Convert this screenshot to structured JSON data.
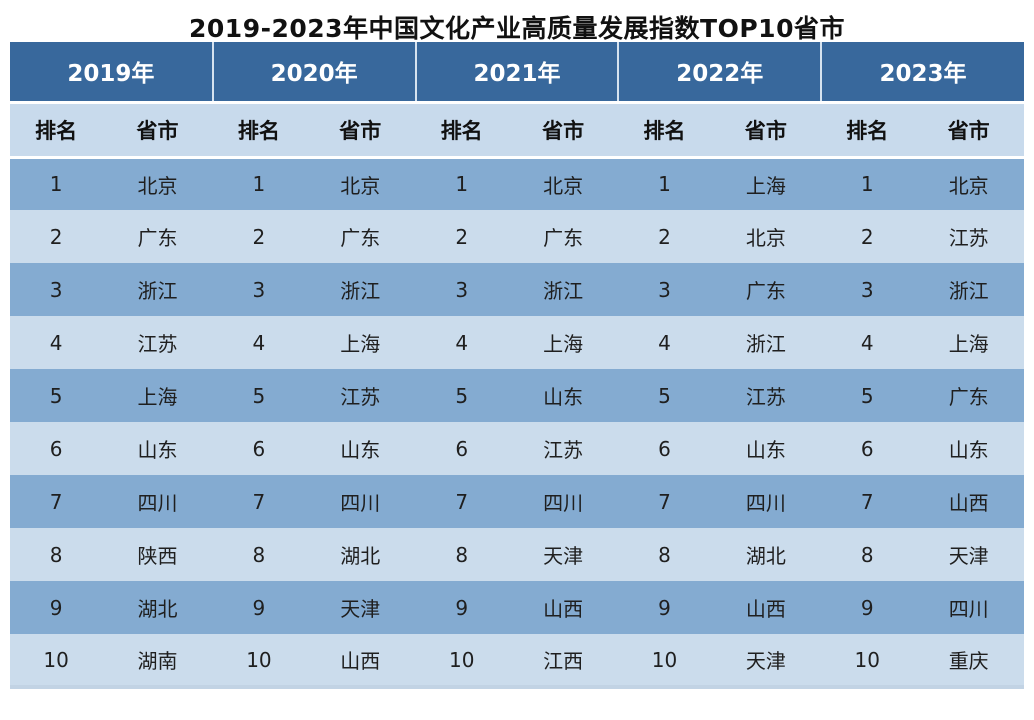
{
  "chart_data": {
    "type": "table",
    "title": "2019-2023年中国文化产业高质量发展指数TOP10省市",
    "year_columns": [
      "2019年",
      "2020年",
      "2021年",
      "2022年",
      "2023年"
    ],
    "sub_columns": [
      "排名",
      "省市"
    ],
    "rows": [
      {
        "rank": "1",
        "provinces": [
          "北京",
          "北京",
          "北京",
          "上海",
          "北京"
        ]
      },
      {
        "rank": "2",
        "provinces": [
          "广东",
          "广东",
          "广东",
          "北京",
          "江苏"
        ]
      },
      {
        "rank": "3",
        "provinces": [
          "浙江",
          "浙江",
          "浙江",
          "广东",
          "浙江"
        ]
      },
      {
        "rank": "4",
        "provinces": [
          "江苏",
          "上海",
          "上海",
          "浙江",
          "上海"
        ]
      },
      {
        "rank": "5",
        "provinces": [
          "上海",
          "江苏",
          "山东",
          "江苏",
          "广东"
        ]
      },
      {
        "rank": "6",
        "provinces": [
          "山东",
          "山东",
          "江苏",
          "山东",
          "山东"
        ]
      },
      {
        "rank": "7",
        "provinces": [
          "四川",
          "四川",
          "四川",
          "四川",
          "山西"
        ]
      },
      {
        "rank": "8",
        "provinces": [
          "陕西",
          "湖北",
          "天津",
          "湖北",
          "天津"
        ]
      },
      {
        "rank": "9",
        "provinces": [
          "湖北",
          "天津",
          "山西",
          "山西",
          "四川"
        ]
      },
      {
        "rank": "10",
        "provinces": [
          "湖南",
          "山西",
          "江西",
          "天津",
          "重庆"
        ]
      }
    ],
    "layout": {
      "legend": "none",
      "grid": "off",
      "row_striping": "odd rows medium blue, even rows light blue"
    },
    "colors": {
      "header_bg": "#38689C",
      "header_text": "#FFFFFF",
      "subheader_bg": "#C8DAEC",
      "row_odd_bg": "#84ABD1",
      "row_even_bg": "#CBDCEC",
      "body_text": "#1F1F1F",
      "header_divider": "#D6E3F0",
      "page_bg": "#FFFFFF"
    }
  }
}
